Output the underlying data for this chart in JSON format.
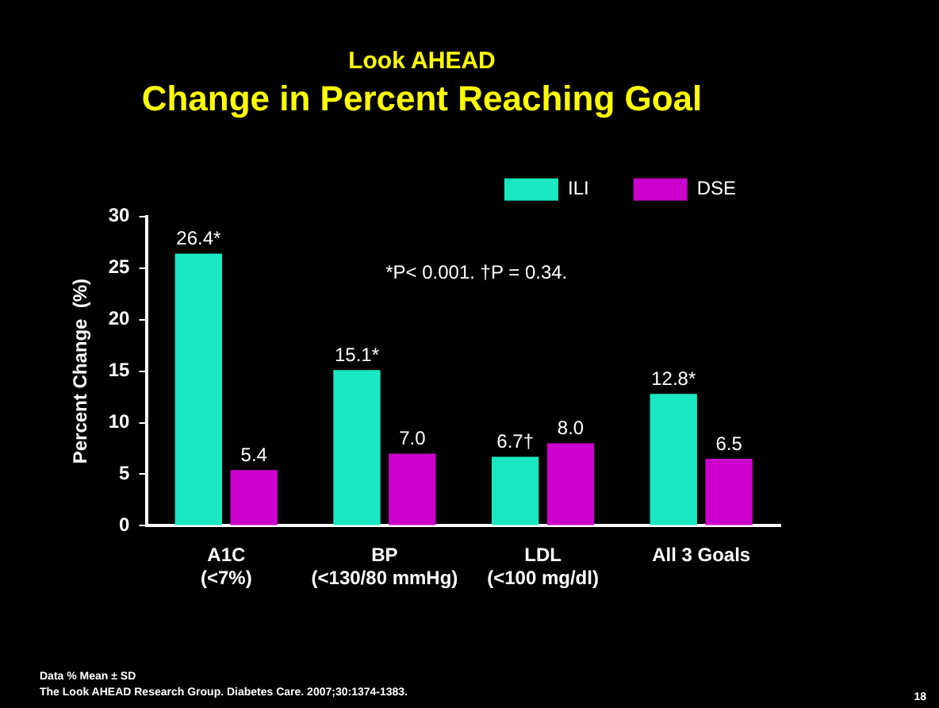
{
  "chart_data": {
    "type": "bar",
    "title": "Look AHEAD",
    "subtitle": "Change in Percent Reaching Goal",
    "ylabel": "Percent Change  (%)",
    "categories": [
      "A1C\n(<7%)",
      "BP\n(<130/80 mmHg)",
      "LDL\n(<100 mg/dl)",
      "All 3 Goals"
    ],
    "series": [
      {
        "name": "ILI",
        "color": "#19e8c0",
        "values": [
          26.4,
          15.1,
          6.7,
          12.8
        ],
        "value_labels": [
          "26.4*",
          "15.1*",
          "6.7†",
          "12.8*"
        ]
      },
      {
        "name": "DSE",
        "color": "#cc00cc",
        "values": [
          5.4,
          7.0,
          8.0,
          6.5
        ],
        "value_labels": [
          "5.4",
          "7.0",
          "8.0",
          "6.5"
        ]
      }
    ],
    "ylim": [
      0,
      30
    ],
    "yticks": [
      0,
      5,
      10,
      15,
      20,
      25,
      30
    ],
    "grid": false,
    "legend": "top right",
    "annotations": [
      "*P< 0.001. †P = 0.34.",
      "Data % Mean ± SD",
      "The Look AHEAD Research Group. Diabetes Care. 2007;30:1374-1383.",
      "18"
    ]
  }
}
